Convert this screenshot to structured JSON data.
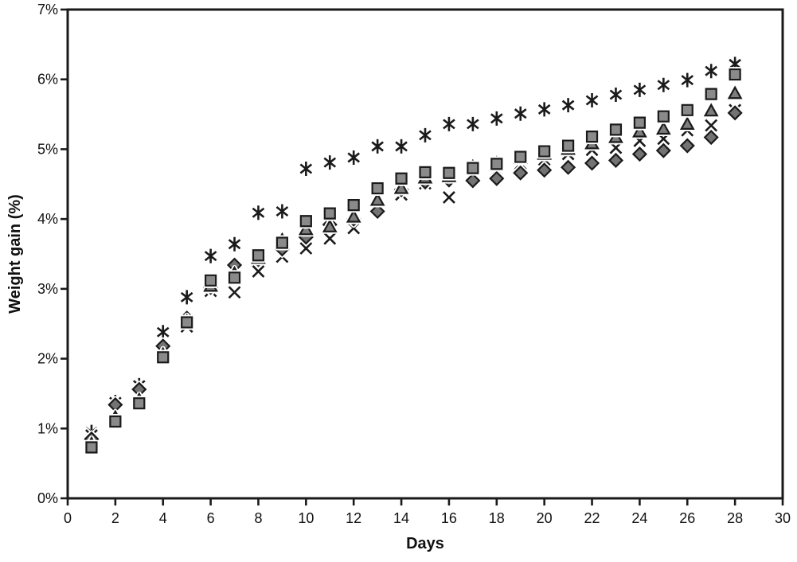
{
  "figure": {
    "background": "#ffffff",
    "frame_color": "#1a1a1a",
    "tick_color": "#1a1a1a",
    "text_color": "#111111"
  },
  "chart_data": {
    "type": "scatter",
    "title": "",
    "xlabel": "Days",
    "ylabel": "Weight gain (%)",
    "xlim": [
      0,
      30
    ],
    "ylim": [
      0,
      7
    ],
    "x_ticks": [
      0,
      2,
      4,
      6,
      8,
      10,
      12,
      14,
      16,
      18,
      20,
      22,
      24,
      26,
      28,
      30
    ],
    "x_tick_labels": [
      "0",
      "2",
      "4",
      "6",
      "8",
      "10",
      "12",
      "14",
      "16",
      "18",
      "20",
      "22",
      "24",
      "26",
      "28",
      "30"
    ],
    "y_ticks": [
      0,
      1,
      2,
      3,
      4,
      5,
      6,
      7
    ],
    "y_tick_labels": [
      "0%",
      "1%",
      "2%",
      "3%",
      "4%",
      "5%",
      "6%",
      "7%"
    ],
    "grid": false,
    "legend": "none",
    "x": [
      1,
      2,
      3,
      4,
      5,
      6,
      7,
      8,
      9,
      10,
      11,
      12,
      13,
      14,
      15,
      16,
      17,
      18,
      19,
      20,
      21,
      22,
      23,
      24,
      25,
      26,
      27,
      28
    ],
    "series": [
      {
        "name": "star-series",
        "marker": "star",
        "line_color": "#1a1a1a",
        "fill": "none",
        "values": [
          0.95,
          1.38,
          1.62,
          2.38,
          2.88,
          3.47,
          3.64,
          4.09,
          4.11,
          4.72,
          4.81,
          4.88,
          5.04,
          5.04,
          5.2,
          5.36,
          5.36,
          5.44,
          5.51,
          5.57,
          5.63,
          5.7,
          5.78,
          5.85,
          5.92,
          5.99,
          6.12,
          6.22
        ]
      },
      {
        "name": "x-series",
        "marker": "x",
        "line_color": "#1a1a1a",
        "fill": "none",
        "values": [
          0.9,
          1.24,
          1.45,
          2.1,
          2.46,
          2.97,
          2.95,
          3.25,
          3.46,
          3.58,
          3.72,
          3.87,
          4.17,
          4.35,
          4.51,
          4.31,
          4.64,
          4.7,
          4.79,
          4.85,
          4.93,
          4.99,
          5.02,
          5.12,
          5.15,
          5.27,
          5.34,
          5.56
        ]
      },
      {
        "name": "diamond-series",
        "marker": "diamond",
        "line_color": "#1a1a1a",
        "fill": "#737373",
        "values": [
          0.85,
          1.34,
          1.56,
          2.18,
          2.58,
          3.02,
          3.34,
          3.42,
          3.57,
          3.74,
          3.92,
          4.0,
          4.11,
          4.42,
          4.53,
          4.56,
          4.55,
          4.58,
          4.66,
          4.7,
          4.74,
          4.8,
          4.84,
          4.93,
          4.98,
          5.05,
          5.17,
          5.52
        ]
      },
      {
        "name": "triangle-series",
        "marker": "triangle",
        "line_color": "#1a1a1a",
        "fill": "#7d7d7d",
        "values": [
          0.78,
          1.16,
          1.41,
          2.06,
          2.54,
          3.04,
          3.22,
          3.44,
          3.7,
          3.85,
          3.89,
          4.03,
          4.27,
          4.44,
          4.59,
          4.61,
          4.75,
          4.8,
          4.87,
          4.93,
          5.0,
          5.08,
          5.17,
          5.25,
          5.29,
          5.36,
          5.55,
          5.8
        ]
      },
      {
        "name": "square-series",
        "marker": "square",
        "line_color": "#1a1a1a",
        "fill": "#8a8a8a",
        "values": [
          0.73,
          1.1,
          1.36,
          2.02,
          2.52,
          3.12,
          3.16,
          3.48,
          3.66,
          3.97,
          4.08,
          4.2,
          4.44,
          4.58,
          4.67,
          4.66,
          4.73,
          4.79,
          4.89,
          4.97,
          5.05,
          5.18,
          5.28,
          5.38,
          5.47,
          5.56,
          5.79,
          6.07
        ]
      }
    ]
  }
}
